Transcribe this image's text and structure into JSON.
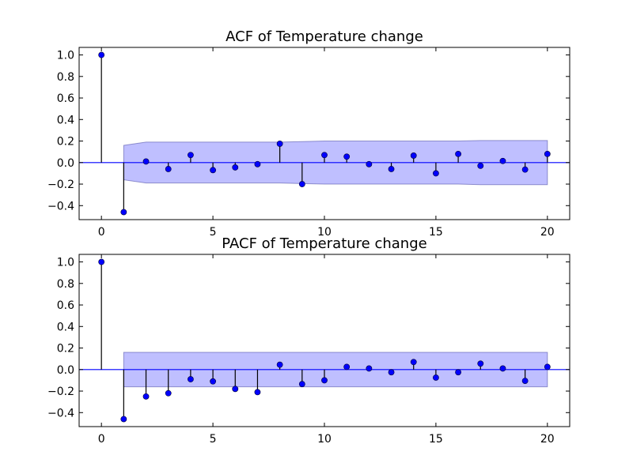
{
  "chart_data": [
    {
      "type": "stem",
      "title": "ACF of Temperature change",
      "xlabel": "",
      "ylabel": "",
      "xlim": [
        -1,
        21
      ],
      "ylim": [
        -0.53,
        1.07
      ],
      "xticks": [
        0,
        5,
        10,
        15,
        20
      ],
      "xtick_labels": [
        "0",
        "5",
        "10",
        "15",
        "20"
      ],
      "yticks": [
        1.0,
        0.8,
        0.6,
        0.4,
        0.2,
        0.0,
        -0.2,
        -0.4
      ],
      "ytick_labels": [
        "1.0",
        "0.8",
        "0.6",
        "0.4",
        "0.2",
        "0.0",
        "−0.2",
        "−0.4"
      ],
      "grid": false,
      "x": [
        0,
        1,
        2,
        3,
        4,
        5,
        6,
        7,
        8,
        9,
        10,
        11,
        12,
        13,
        14,
        15,
        16,
        17,
        18,
        19,
        20
      ],
      "values": [
        1.0,
        -0.46,
        0.01,
        -0.06,
        0.07,
        -0.07,
        -0.045,
        -0.015,
        0.175,
        -0.2,
        0.07,
        0.055,
        -0.015,
        -0.06,
        0.065,
        -0.1,
        0.08,
        -0.03,
        0.015,
        -0.065,
        0.08
      ],
      "confidence_band": {
        "x": [
          1,
          2,
          3,
          4,
          5,
          6,
          7,
          8,
          9,
          10,
          11,
          12,
          13,
          14,
          15,
          16,
          17,
          18,
          19,
          20
        ],
        "upper": [
          0.16,
          0.19,
          0.19,
          0.19,
          0.19,
          0.19,
          0.19,
          0.19,
          0.195,
          0.2,
          0.2,
          0.2,
          0.2,
          0.2,
          0.2,
          0.2,
          0.205,
          0.205,
          0.205,
          0.205
        ],
        "lower": [
          -0.16,
          -0.19,
          -0.19,
          -0.19,
          -0.19,
          -0.19,
          -0.19,
          -0.19,
          -0.195,
          -0.2,
          -0.2,
          -0.2,
          -0.2,
          -0.2,
          -0.2,
          -0.2,
          -0.205,
          -0.205,
          -0.205,
          -0.205
        ]
      },
      "colors": {
        "marker": "#0000ff",
        "stem": "#000000",
        "band": "#0000ff",
        "zero_line": "#0000ff"
      }
    },
    {
      "type": "stem",
      "title": "PACF of Temperature change",
      "xlabel": "",
      "ylabel": "",
      "xlim": [
        -1,
        21
      ],
      "ylim": [
        -0.53,
        1.07
      ],
      "xticks": [
        0,
        5,
        10,
        15,
        20
      ],
      "xtick_labels": [
        "0",
        "5",
        "10",
        "15",
        "20"
      ],
      "yticks": [
        1.0,
        0.8,
        0.6,
        0.4,
        0.2,
        0.0,
        -0.2,
        -0.4
      ],
      "ytick_labels": [
        "1.0",
        "0.8",
        "0.6",
        "0.4",
        "0.2",
        "0.0",
        "−0.2",
        "−0.4"
      ],
      "grid": false,
      "x": [
        0,
        1,
        2,
        3,
        4,
        5,
        6,
        7,
        8,
        9,
        10,
        11,
        12,
        13,
        14,
        15,
        16,
        17,
        18,
        19,
        20
      ],
      "values": [
        1.0,
        -0.46,
        -0.25,
        -0.22,
        -0.09,
        -0.11,
        -0.18,
        -0.21,
        0.045,
        -0.135,
        -0.1,
        0.025,
        0.01,
        -0.025,
        0.07,
        -0.075,
        -0.025,
        0.055,
        0.01,
        -0.105,
        0.025
      ],
      "confidence_band": {
        "x": [
          1,
          20
        ],
        "upper": [
          0.16,
          0.16
        ],
        "lower": [
          -0.16,
          -0.16
        ]
      },
      "colors": {
        "marker": "#0000ff",
        "stem": "#000000",
        "band": "#0000ff",
        "zero_line": "#0000ff"
      }
    }
  ]
}
